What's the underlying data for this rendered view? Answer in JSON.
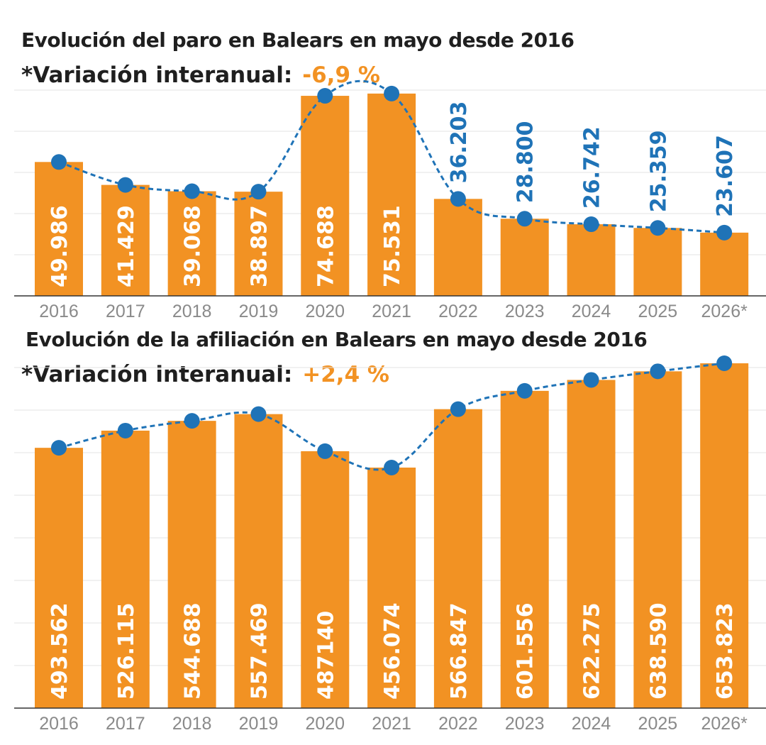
{
  "colors": {
    "bar": "#f29223",
    "line": "#1f73b7",
    "grid": "#e3e3e3",
    "axis": "#333333",
    "text": "#1f1f1f",
    "accent": "#f29223"
  },
  "chart_data": [
    {
      "type": "bar",
      "title": "Evolución del paro en Balears en mayo desde 2016",
      "variation_label": "*Variación interanual:",
      "variation_value": "-6,9 %",
      "categories": [
        "2016",
        "2017",
        "2018",
        "2019",
        "2020",
        "2021",
        "2022",
        "2023",
        "2024",
        "2025",
        "2026*"
      ],
      "values": [
        49986,
        41429,
        39068,
        38897,
        74688,
        75531,
        36203,
        28800,
        26742,
        25359,
        23607
      ],
      "labels": [
        "49.986",
        "41.429",
        "39.068",
        "38.897",
        "74.688",
        "75.531",
        "36.203",
        "28.800",
        "26.742",
        "25.359",
        "23.607"
      ],
      "ylim": [
        0,
        80000
      ],
      "trend_line": "dashed",
      "grid": true
    },
    {
      "type": "bar",
      "title": "Evolución de la afiliación en Balears en mayo desde 2016",
      "variation_label": "*Variación interanual:",
      "variation_value": "+2,4 %",
      "categories": [
        "2016",
        "2017",
        "2018",
        "2019",
        "2020",
        "2021",
        "2022",
        "2023",
        "2024",
        "2025",
        "2026*"
      ],
      "values": [
        493562,
        526115,
        544688,
        557469,
        487140,
        456074,
        566847,
        601556,
        622275,
        638590,
        653823
      ],
      "labels": [
        "493.562",
        "526.115",
        "544.688",
        "557.469",
        "487140",
        "456.074",
        "566.847",
        "601.556",
        "622.275",
        "638.590",
        "653.823"
      ],
      "ylim": [
        0,
        670000
      ],
      "trend_line": "dashed",
      "grid": true
    }
  ]
}
